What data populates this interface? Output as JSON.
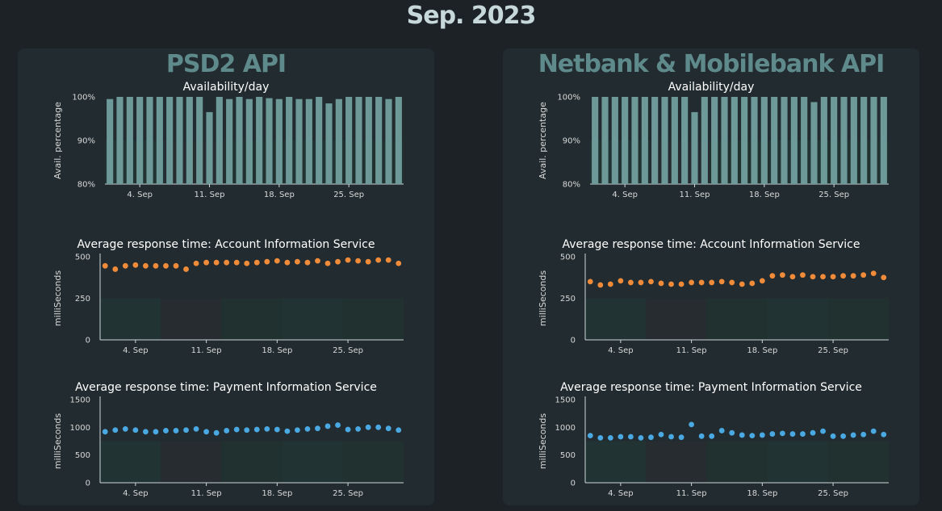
{
  "page_title": "Sep. 2023",
  "colors": {
    "bar": "#6e9999",
    "scatter_ais": "#f08b3a",
    "scatter_pis": "#4aa9e2",
    "panel_bg": "#222c30",
    "page_bg": "#1d2226",
    "title_accent": "#5e8a8c"
  },
  "panels": [
    {
      "title": "PSD2 API",
      "chart_data": [
        {
          "type": "bar",
          "title": "Availability/day",
          "ylabel": "Avail. percentage",
          "xlabel": "",
          "ylim": [
            80,
            100
          ],
          "yticks": [
            "80%",
            "90%",
            "100%"
          ],
          "xticks": [
            "4. Sep",
            "11. Sep",
            "18. Sep",
            "25. Sep"
          ],
          "categories": [
            "1",
            "2",
            "3",
            "4",
            "5",
            "6",
            "7",
            "8",
            "9",
            "10",
            "11",
            "12",
            "13",
            "14",
            "15",
            "16",
            "17",
            "18",
            "19",
            "20",
            "21",
            "22",
            "23",
            "24",
            "25",
            "26",
            "27",
            "28",
            "29",
            "30"
          ],
          "values": [
            99.5,
            100,
            100,
            100,
            100,
            100,
            100,
            100,
            100,
            100,
            96.5,
            100,
            99.5,
            100,
            99.5,
            100,
            99.7,
            99.5,
            100,
            99.5,
            99.5,
            100,
            98.5,
            99.5,
            100,
            100,
            100,
            100,
            99.5,
            100
          ]
        },
        {
          "type": "scatter",
          "title": "Average response time: Account Information Service",
          "ylabel": "milliSeconds",
          "xlabel": "",
          "ylim": [
            0,
            500
          ],
          "yticks": [
            "0",
            "250",
            "500"
          ],
          "xticks": [
            "4. Sep",
            "11. Sep",
            "18. Sep",
            "25. Sep"
          ],
          "x": [
            1,
            2,
            3,
            4,
            5,
            6,
            7,
            8,
            9,
            10,
            11,
            12,
            13,
            14,
            15,
            16,
            17,
            18,
            19,
            20,
            21,
            22,
            23,
            24,
            25,
            26,
            27,
            28,
            29,
            30
          ],
          "values": [
            445,
            425,
            445,
            450,
            445,
            445,
            445,
            445,
            425,
            460,
            465,
            465,
            465,
            465,
            460,
            465,
            470,
            475,
            465,
            470,
            465,
            475,
            460,
            470,
            480,
            475,
            470,
            480,
            480,
            460
          ]
        },
        {
          "type": "scatter",
          "title": "Average response time: Payment Information Service",
          "ylabel": "milliSeconds",
          "xlabel": "",
          "ylim": [
            0,
            1500
          ],
          "yticks": [
            "0",
            "500",
            "1000",
            "1500"
          ],
          "xticks": [
            "4. Sep",
            "11. Sep",
            "18. Sep",
            "25. Sep"
          ],
          "x": [
            1,
            2,
            3,
            4,
            5,
            6,
            7,
            8,
            9,
            10,
            11,
            12,
            13,
            14,
            15,
            16,
            17,
            18,
            19,
            20,
            21,
            22,
            23,
            24,
            25,
            26,
            27,
            28,
            29,
            30
          ],
          "values": [
            920,
            950,
            970,
            950,
            920,
            920,
            940,
            940,
            950,
            970,
            920,
            900,
            940,
            960,
            950,
            960,
            970,
            960,
            930,
            950,
            970,
            980,
            1020,
            1040,
            960,
            970,
            1000,
            1000,
            980,
            950
          ]
        }
      ]
    },
    {
      "title": "Netbank & Mobilebank API",
      "chart_data": [
        {
          "type": "bar",
          "title": "Availability/day",
          "ylabel": "Avail. percentage",
          "xlabel": "",
          "ylim": [
            80,
            100
          ],
          "yticks": [
            "80%",
            "90%",
            "100%"
          ],
          "xticks": [
            "4. Sep",
            "11. Sep",
            "18. Sep",
            "25. Sep"
          ],
          "categories": [
            "1",
            "2",
            "3",
            "4",
            "5",
            "6",
            "7",
            "8",
            "9",
            "10",
            "11",
            "12",
            "13",
            "14",
            "15",
            "16",
            "17",
            "18",
            "19",
            "20",
            "21",
            "22",
            "23",
            "24",
            "25",
            "26",
            "27",
            "28",
            "29",
            "30"
          ],
          "values": [
            100,
            100,
            100,
            100,
            100,
            100,
            100,
            100,
            100,
            100,
            96.5,
            100,
            100,
            100,
            100,
            100,
            100,
            100,
            100,
            100,
            100,
            100,
            98.8,
            100,
            100,
            100,
            100,
            100,
            100,
            100
          ]
        },
        {
          "type": "scatter",
          "title": "Average response time: Account Information Service",
          "ylabel": "milliSeconds",
          "xlabel": "",
          "ylim": [
            0,
            500
          ],
          "yticks": [
            "0",
            "250",
            "500"
          ],
          "xticks": [
            "4. Sep",
            "11. Sep",
            "18. Sep",
            "25. Sep"
          ],
          "x": [
            1,
            2,
            3,
            4,
            5,
            6,
            7,
            8,
            9,
            10,
            11,
            12,
            13,
            14,
            15,
            16,
            17,
            18,
            19,
            20,
            21,
            22,
            23,
            24,
            25,
            26,
            27,
            28,
            29,
            30
          ],
          "values": [
            350,
            330,
            335,
            355,
            345,
            345,
            350,
            340,
            335,
            335,
            345,
            345,
            345,
            350,
            345,
            335,
            340,
            355,
            385,
            390,
            380,
            390,
            380,
            380,
            380,
            385,
            385,
            390,
            400,
            375
          ]
        },
        {
          "type": "scatter",
          "title": "Average response time: Payment Information Service",
          "ylabel": "milliSeconds",
          "xlabel": "",
          "ylim": [
            0,
            1500
          ],
          "yticks": [
            "0",
            "500",
            "1000",
            "1500"
          ],
          "xticks": [
            "4. Sep",
            "11. Sep",
            "18. Sep",
            "25. Sep"
          ],
          "x": [
            1,
            2,
            3,
            4,
            5,
            6,
            7,
            8,
            9,
            10,
            11,
            12,
            13,
            14,
            15,
            16,
            17,
            18,
            19,
            20,
            21,
            22,
            23,
            24,
            25,
            26,
            27,
            28,
            29,
            30
          ],
          "values": [
            850,
            810,
            810,
            830,
            830,
            810,
            820,
            870,
            830,
            820,
            1050,
            840,
            840,
            940,
            900,
            860,
            850,
            860,
            880,
            890,
            880,
            880,
            900,
            930,
            840,
            840,
            860,
            870,
            930,
            870
          ]
        }
      ]
    }
  ]
}
